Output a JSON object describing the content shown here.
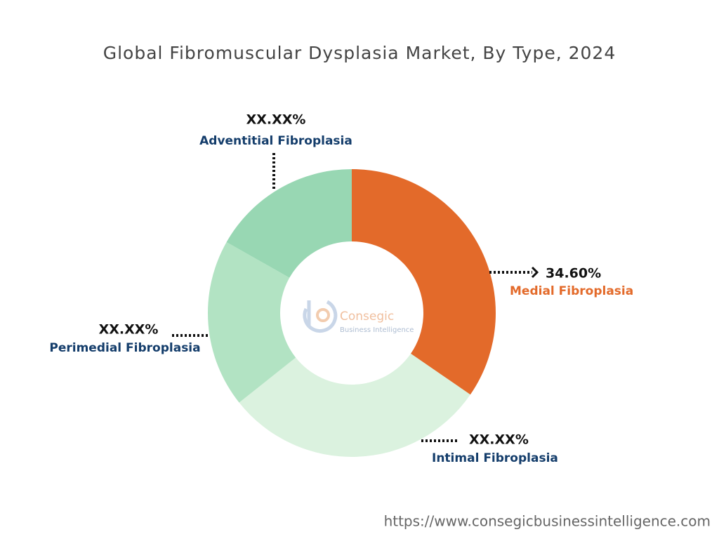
{
  "chart_data": {
    "type": "donut",
    "title": "Global Fibromuscular Dysplasia Market, By Type, 2024",
    "categories": [
      "Medial Fibroplasia",
      "Intimal Fibroplasia",
      "Perimedial Fibroplasia",
      "Adventitial Fibroplasia"
    ],
    "values": [
      34.6,
      29.7,
      18.9,
      16.8
    ],
    "value_labels": [
      "34.60%",
      "XX.XX%",
      "XX.XX%",
      "XX.XX%"
    ],
    "colors": [
      "#e36a2a",
      "#dbf2df",
      "#b2e3c3",
      "#98d7b3"
    ],
    "watermark": {
      "name": "Consegic",
      "tagline": "Business Intelligence"
    },
    "source": "https://www.consegicbusinessintelligence.com"
  }
}
